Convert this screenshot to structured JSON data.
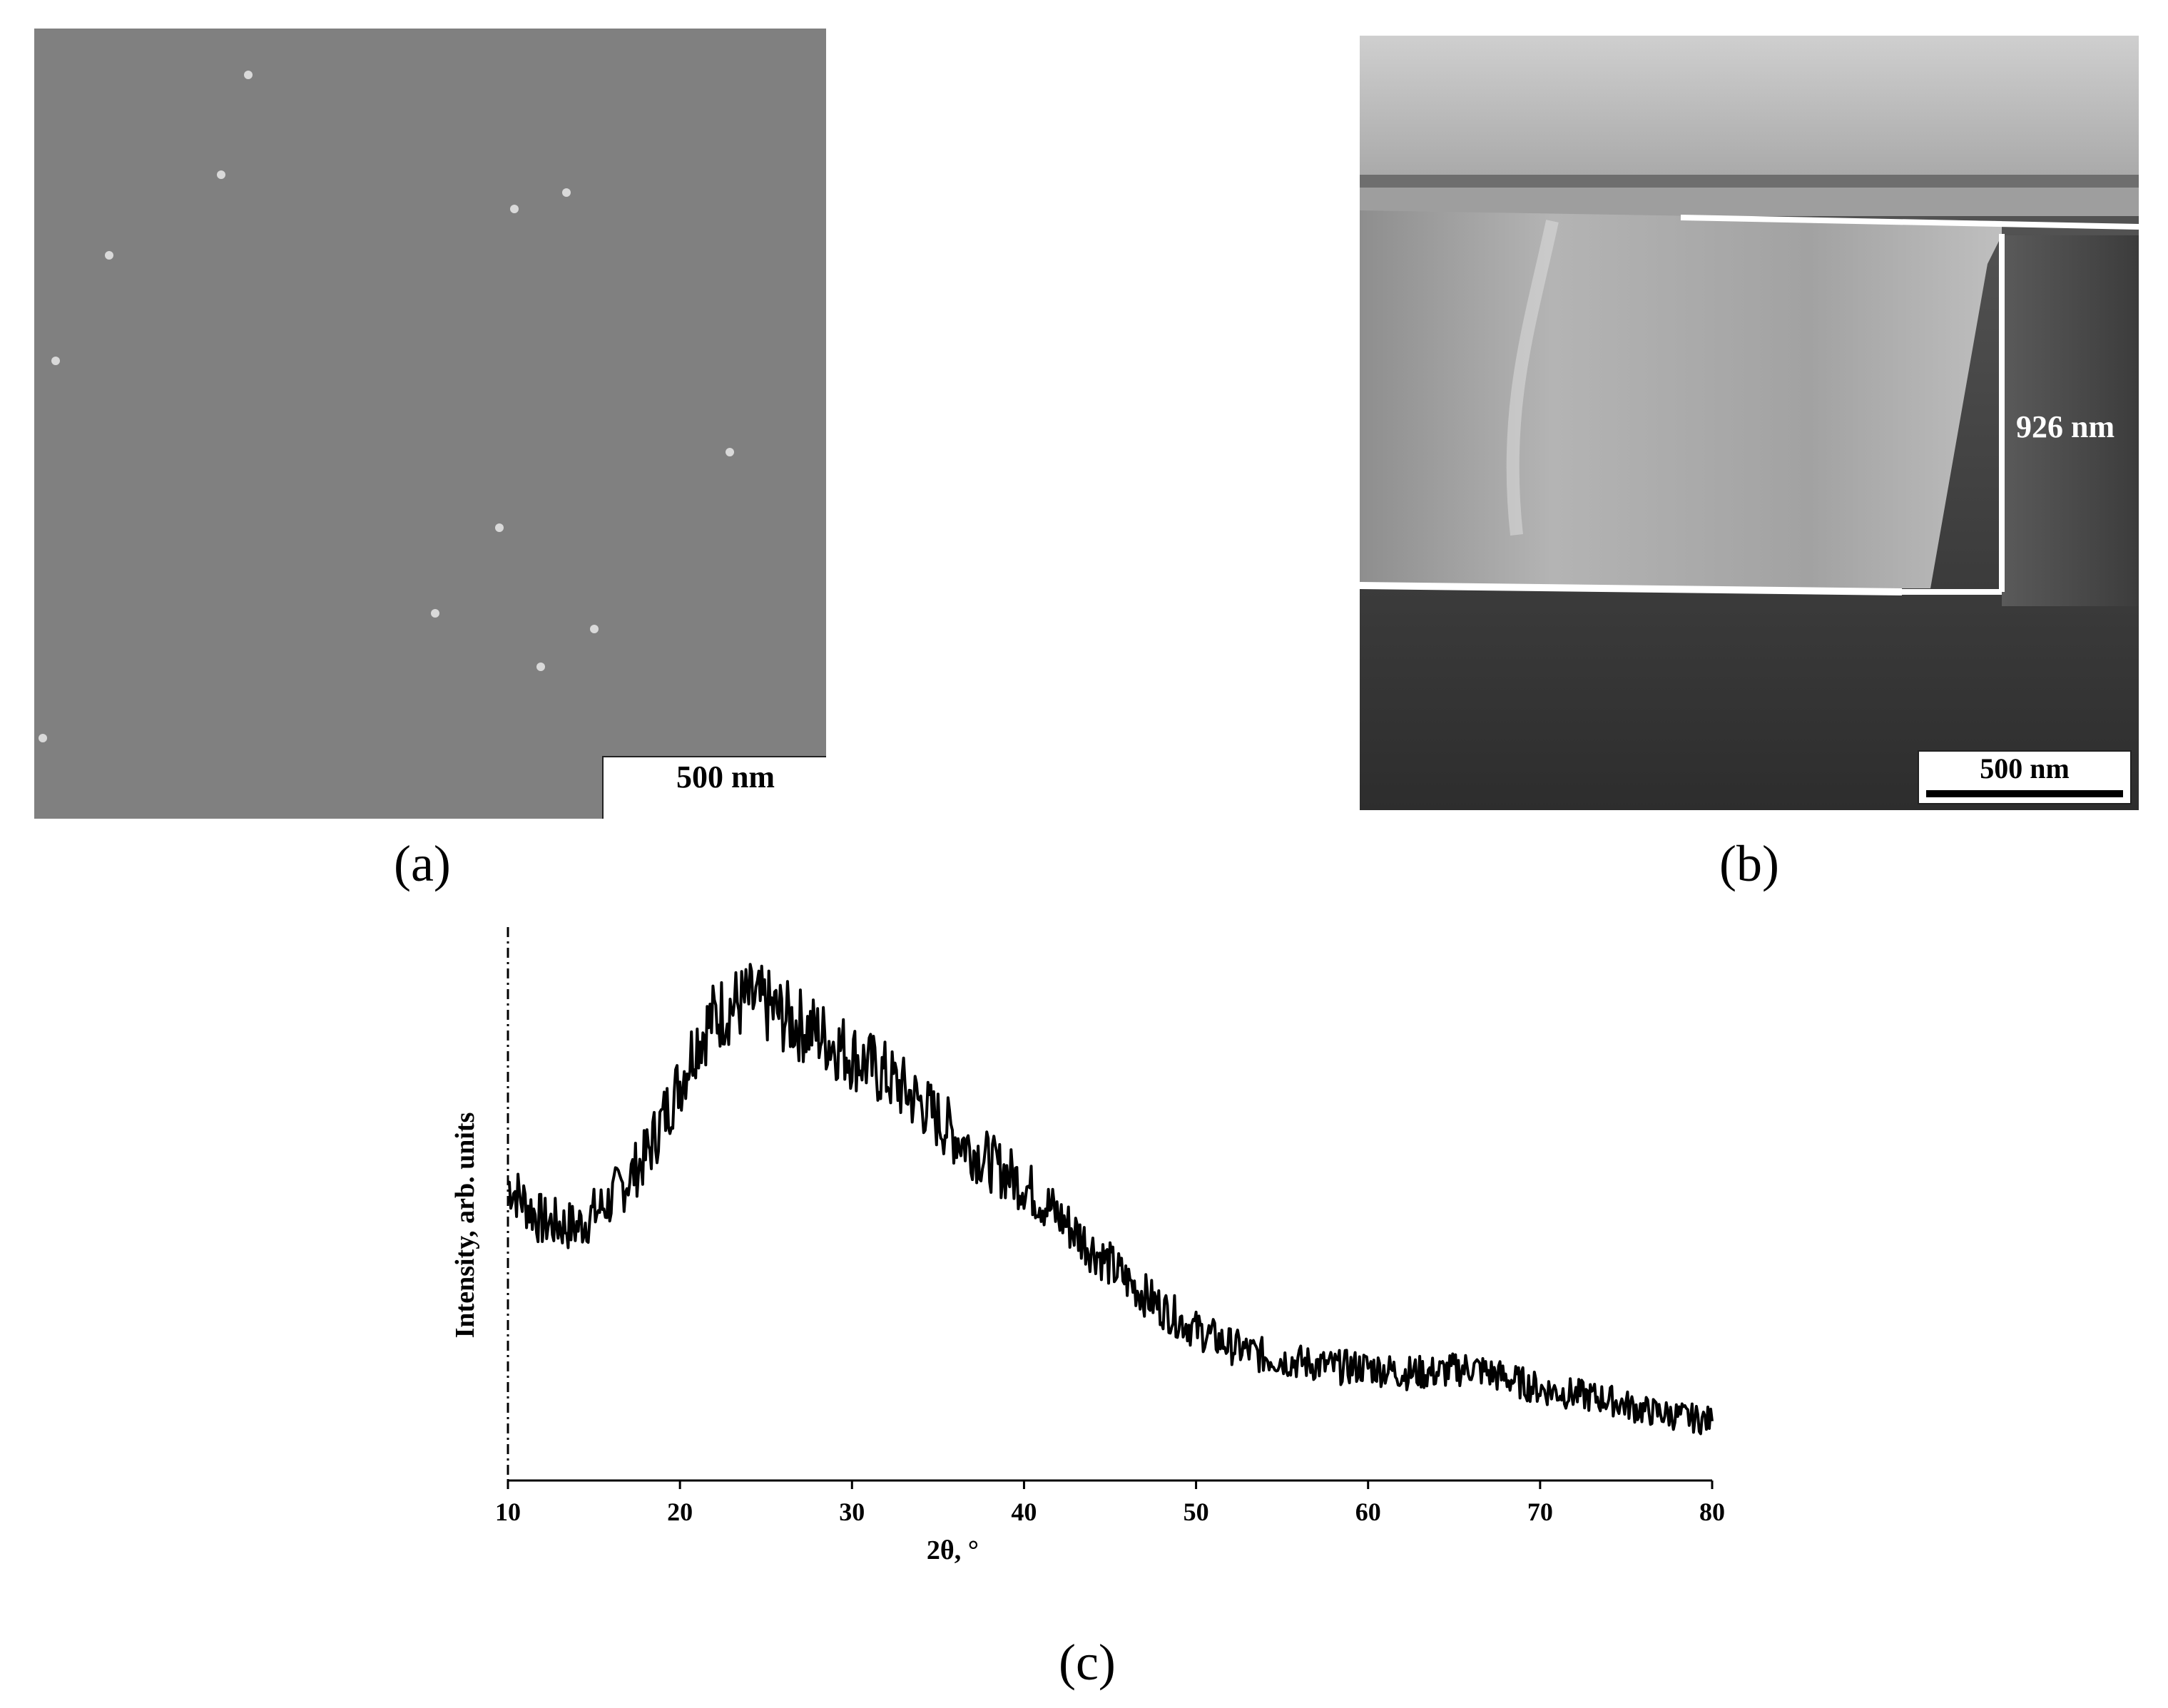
{
  "panels": {
    "a": {
      "label": "(a)",
      "scale_bar": "500 nm"
    },
    "b": {
      "label": "(b)",
      "scale_bar": "500 nm",
      "thickness": "926 nm"
    },
    "c": {
      "label": "(c)"
    }
  },
  "chart_data": {
    "type": "line",
    "title": "",
    "xlabel": "2θ, °",
    "ylabel": "Intensity, arb. units",
    "xlim": [
      10,
      80
    ],
    "ylim": [
      0,
      1
    ],
    "x_ticks": [
      "10",
      "20",
      "30",
      "40",
      "50",
      "60",
      "70",
      "80"
    ],
    "grid": false,
    "series": [
      {
        "x": [
          10,
          12,
          14,
          16,
          18,
          20,
          21,
          22,
          23,
          24,
          25,
          26,
          28,
          30,
          32,
          34,
          36,
          38,
          40,
          42,
          44,
          46,
          48,
          50,
          52,
          54,
          56,
          58,
          60,
          62,
          64,
          66,
          68,
          70,
          72,
          74,
          76,
          78,
          80
        ],
        "values": [
          0.55,
          0.48,
          0.47,
          0.52,
          0.6,
          0.74,
          0.82,
          0.86,
          0.88,
          0.89,
          0.88,
          0.86,
          0.83,
          0.79,
          0.75,
          0.7,
          0.64,
          0.59,
          0.55,
          0.49,
          0.43,
          0.37,
          0.32,
          0.28,
          0.25,
          0.23,
          0.22,
          0.21,
          0.21,
          0.2,
          0.2,
          0.21,
          0.19,
          0.17,
          0.16,
          0.15,
          0.13,
          0.12,
          0.11
        ]
      }
    ]
  }
}
